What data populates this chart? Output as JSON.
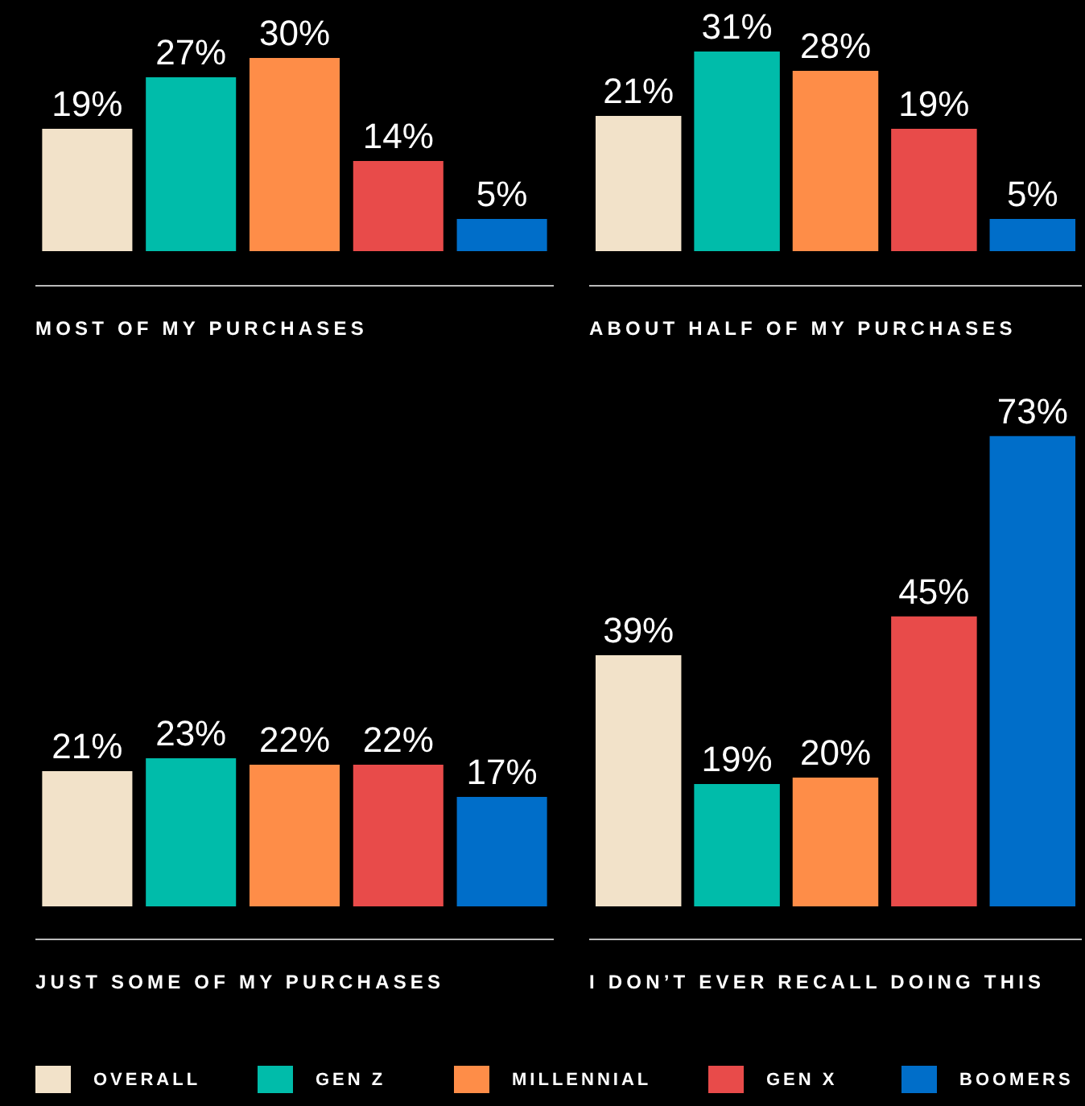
{
  "chart_data": [
    {
      "type": "bar",
      "xlabel": "MOST OF MY PURCHASES",
      "categories": [
        null
      ],
      "tick_labels": false,
      "legend": "bottom",
      "series": [
        {
          "name": "OVERALL",
          "color": "#f2e2c9",
          "values": [
            19
          ],
          "value_labels": [
            "19%"
          ]
        },
        {
          "name": "GEN Z",
          "color": "#00bcaa",
          "values": [
            27
          ],
          "value_labels": [
            "27%"
          ]
        },
        {
          "name": "MILLENNIAL",
          "color": "#fe8d48",
          "values": [
            30
          ],
          "value_labels": [
            "30%"
          ]
        },
        {
          "name": "GEN X",
          "color": "#e84b4a",
          "values": [
            14
          ],
          "value_labels": [
            "14%"
          ]
        },
        {
          "name": "BOOMERS",
          "color": "#006ec9",
          "values": [
            5
          ],
          "value_labels": [
            "5%"
          ]
        }
      ]
    },
    {
      "type": "bar",
      "xlabel": "ABOUT HALF OF MY PURCHASES",
      "categories": [
        null
      ],
      "tick_labels": false,
      "series": [
        {
          "color": "#f2e2c9",
          "values": [
            21
          ],
          "value_labels": [
            "21%"
          ]
        },
        {
          "color": "#00bcaa",
          "values": [
            31
          ],
          "value_labels": [
            "31%"
          ]
        },
        {
          "color": "#fe8d48",
          "values": [
            28
          ],
          "value_labels": [
            "28%"
          ]
        },
        {
          "color": "#e84b4a",
          "values": [
            19
          ],
          "value_labels": [
            "19%"
          ]
        },
        {
          "color": "#006ec9",
          "values": [
            5
          ],
          "value_labels": [
            "5%"
          ]
        }
      ]
    },
    {
      "type": "bar",
      "xlabel": "JUST SOME OF MY PURCHASES",
      "categories": [
        null
      ],
      "tick_labels": false,
      "series": [
        {
          "color": "#f2e2c9",
          "values": [
            21
          ],
          "value_labels": [
            "21%"
          ]
        },
        {
          "color": "#00bcaa",
          "values": [
            23
          ],
          "value_labels": [
            "23%"
          ]
        },
        {
          "color": "#fe8d48",
          "values": [
            22
          ],
          "value_labels": [
            "22%"
          ]
        },
        {
          "color": "#e84b4a",
          "values": [
            22
          ],
          "value_labels": [
            "22%"
          ]
        },
        {
          "color": "#006ec9",
          "values": [
            17
          ],
          "value_labels": [
            "17%"
          ]
        }
      ]
    },
    {
      "type": "bar",
      "xlabel": "I DON’T EVER RECALL DOING THIS",
      "categories": [
        null
      ],
      "tick_labels": false,
      "series": [
        {
          "color": "#f2e2c9",
          "values": [
            39
          ],
          "value_labels": [
            "39%"
          ]
        },
        {
          "color": "#00bcaa",
          "values": [
            19
          ],
          "value_labels": [
            "19%"
          ]
        },
        {
          "color": "#fe8d48",
          "values": [
            20
          ],
          "value_labels": [
            "20%"
          ]
        },
        {
          "color": "#e84b4a",
          "values": [
            45
          ],
          "value_labels": [
            "45%"
          ]
        },
        {
          "color": "#006ec9",
          "values": [
            73
          ],
          "value_labels": [
            "73%"
          ]
        }
      ]
    }
  ]
}
